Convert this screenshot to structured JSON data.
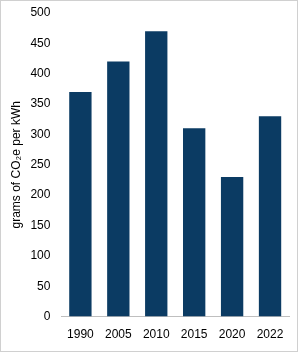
{
  "chart_data": {
    "type": "bar",
    "y_label": "grams of CO₂e per kWh",
    "categories": [
      "1990",
      "2005",
      "2010",
      "2015",
      "2020",
      "2022"
    ],
    "values": [
      370,
      420,
      470,
      310,
      230,
      330
    ],
    "color": "#0b3b63",
    "ylim": [
      0,
      500
    ],
    "yticks": [
      0,
      50,
      100,
      150,
      200,
      250,
      300,
      350,
      400,
      450,
      500
    ],
    "grid": false
  }
}
